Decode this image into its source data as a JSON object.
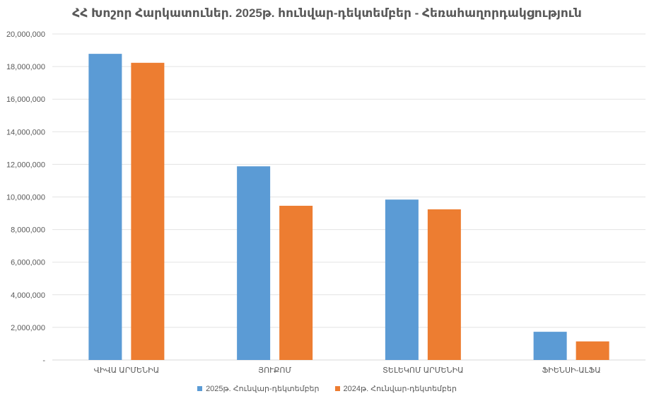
{
  "chart_data": {
    "type": "bar",
    "title": "ՀՀ Խոշոր Հարկատուներ. 2025թ. հունվար-դեկտեմբեր - Հեռահաղորդակցություն",
    "categories": [
      "ՎԻՎԱ ԱՐՄԵՆԻԱ",
      "ՅՈՒՔՈՄ",
      "ՏԵԼԵԿՈՄ ԱՐՄԵՆԻԱ",
      "ՖԻԵՆՍԻ-ԱԼՖԱ"
    ],
    "series": [
      {
        "name": "2025թ. Հունվար-դեկտեմբեր",
        "color": "#5b9bd5",
        "values": [
          18780000,
          11880000,
          9840000,
          1730000
        ]
      },
      {
        "name": "2024թ. Հունվար-դեկտեմբեր",
        "color": "#ed7d31",
        "values": [
          18230000,
          9460000,
          9240000,
          1140000
        ]
      }
    ],
    "ylim": [
      0,
      20000000
    ],
    "yticks": [
      "-",
      "2,000,000",
      "4,000,000",
      "6,000,000",
      "8,000,000",
      "10,000,000",
      "12,000,000",
      "14,000,000",
      "16,000,000",
      "18,000,000",
      "20,000,000"
    ],
    "grid": true,
    "legend_position": "bottom"
  }
}
